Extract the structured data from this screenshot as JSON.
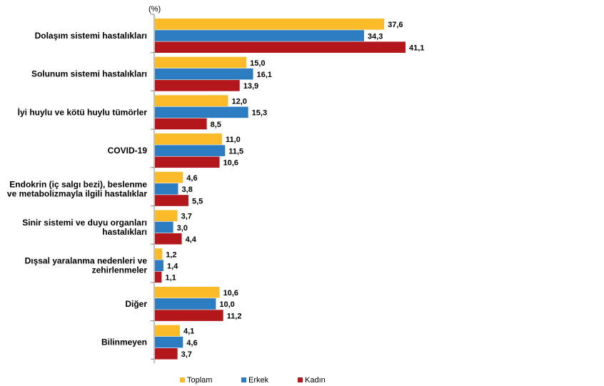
{
  "chart_data": {
    "type": "bar",
    "orientation": "horizontal",
    "unit_label": "(%)",
    "categories": [
      [
        "Dolaşım sistemi hastalıkları"
      ],
      [
        "Solunum sistemi hastalıkları"
      ],
      [
        "İyi huylu ve kötü huylu tümörler"
      ],
      [
        "COVID-19"
      ],
      [
        "Endokrin (iç salgı bezi), beslenme",
        "ve metabolizmayla ilgili hastalıklar"
      ],
      [
        "Sinir sistemi ve duyu organları",
        "hastalıkları"
      ],
      [
        "Dışsal yaralanma nedenleri ve",
        "zehirlenmeler"
      ],
      [
        "Diğer"
      ],
      [
        "Bilinmeyen"
      ]
    ],
    "series": [
      {
        "name": "Toplam",
        "color": "#FBBA28",
        "values": [
          37.6,
          15.0,
          12.0,
          11.0,
          4.6,
          3.7,
          1.2,
          10.6,
          4.1
        ],
        "labels": [
          "37,6",
          "15,0",
          "12,0",
          "11,0",
          "4,6",
          "3,7",
          "1,2",
          "10,6",
          "4,1"
        ]
      },
      {
        "name": "Erkek",
        "color": "#2B7CC1",
        "values": [
          34.3,
          16.1,
          15.3,
          11.5,
          3.8,
          3.0,
          1.4,
          10.0,
          4.6
        ],
        "labels": [
          "34,3",
          "16,1",
          "15,3",
          "11,5",
          "3,8",
          "3,0",
          "1,4",
          "10,0",
          "4,6"
        ]
      },
      {
        "name": "Kadın",
        "color": "#B3171C",
        "values": [
          41.1,
          13.9,
          8.5,
          10.6,
          5.5,
          4.4,
          1.1,
          11.2,
          3.7
        ],
        "labels": [
          "41,1",
          "13,9",
          "8,5",
          "10,6",
          "5,5",
          "4,4",
          "1,1",
          "11,2",
          "3,7"
        ]
      }
    ],
    "xlim": [
      0,
      45
    ],
    "grid": false,
    "legend_position": "bottom"
  }
}
